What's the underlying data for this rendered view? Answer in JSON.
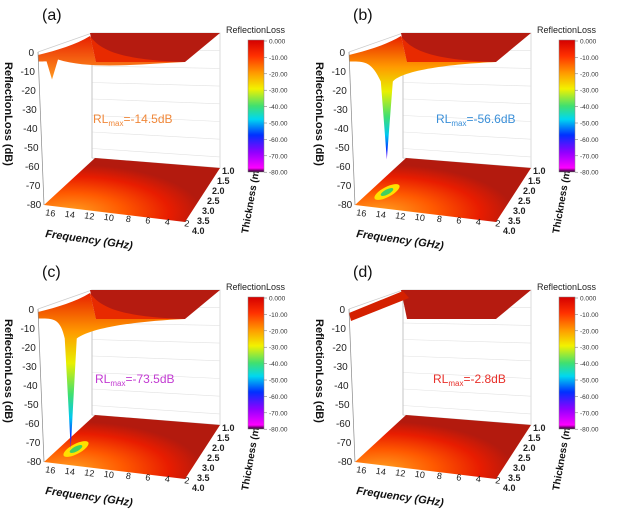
{
  "chart_data": [
    {
      "type": "surface",
      "panel_label": "(a)",
      "annotation": {
        "prefix": "RL",
        "sub": "max",
        "value": "=-14.5dB",
        "color": "#f0883a"
      },
      "rl_max_db": -14.5
    },
    {
      "type": "surface",
      "panel_label": "(b)",
      "annotation": {
        "prefix": "RL",
        "sub": "max",
        "value": "=-56.6dB",
        "color": "#3a8fd8"
      },
      "rl_max_db": -56.6
    },
    {
      "type": "surface",
      "panel_label": "(c)",
      "annotation": {
        "prefix": "RL",
        "sub": "max",
        "value": "=-73.5dB",
        "color": "#c23ad2"
      },
      "rl_max_db": -73.5
    },
    {
      "type": "surface",
      "panel_label": "(d)",
      "annotation": {
        "prefix": "RL",
        "sub": "max",
        "value": "=-2.8dB",
        "color": "#e8302a"
      },
      "rl_max_db": -2.8
    }
  ],
  "axes": {
    "zlabel": "ReflectionLoss (dB)",
    "xlabel": "Frequency (GHz)",
    "ylabel": "Thickness (mm)",
    "z_ticks": [
      "0",
      "-10",
      "-20",
      "-30",
      "-40",
      "-50",
      "-60",
      "-70",
      "-80"
    ],
    "x_ticks": [
      "16",
      "14",
      "12",
      "10",
      "8",
      "6",
      "4",
      "2"
    ],
    "y_ticks": [
      "1.0",
      "1.5",
      "2.0",
      "2.5",
      "3.0",
      "3.5",
      "4.0"
    ],
    "zlim": [
      -80,
      0
    ],
    "xlim": [
      2,
      16
    ],
    "ylim": [
      1.0,
      4.0
    ]
  },
  "colorbar": {
    "title": "ReflectionLoss",
    "ticks": [
      "0.000",
      "-10.00",
      "-20.00",
      "-30.00",
      "-40.00",
      "-50.00",
      "-60.00",
      "-70.00",
      "-80.00"
    ],
    "colors": [
      "#d40000",
      "#ff4000",
      "#ff9a00",
      "#f5f500",
      "#40e070",
      "#00e0f0",
      "#0040ff",
      "#8000ff",
      "#ff00ff",
      "#200020"
    ]
  }
}
